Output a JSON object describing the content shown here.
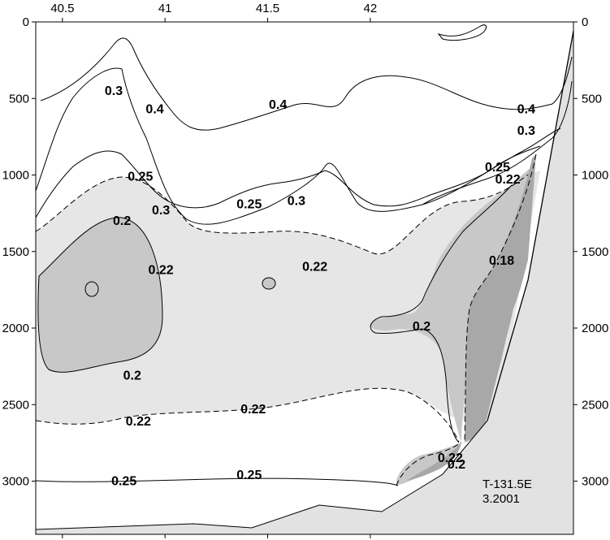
{
  "chart_data": {
    "type": "contour",
    "title": "",
    "x_axis": {
      "range": [
        40.37,
        42.99
      ],
      "ticks": [
        40.5,
        41,
        41.5,
        42
      ],
      "tick_labels": [
        "40.5",
        "41",
        "41.5",
        "42"
      ],
      "position": "top"
    },
    "y_axis": {
      "range": [
        0,
        3300
      ],
      "inverted": true,
      "ticks": [
        0,
        500,
        1000,
        1500,
        2000,
        2500,
        3000
      ],
      "tick_labels": [
        "0",
        "500",
        "1000",
        "1500",
        "2000",
        "2500",
        "3000"
      ],
      "position": "left and right"
    },
    "contour_levels": [
      "0.18",
      "0.2",
      "0.22",
      "0.25",
      "0.3",
      "0.4"
    ],
    "contour_labels": [
      {
        "text": "0.3",
        "x": 40.75,
        "y": 450
      },
      {
        "text": "0.4",
        "x": 40.95,
        "y": 570
      },
      {
        "text": "0.4",
        "x": 41.55,
        "y": 540
      },
      {
        "text": "0.4",
        "x": 42.76,
        "y": 570
      },
      {
        "text": "0.3",
        "x": 42.76,
        "y": 710
      },
      {
        "text": "0.25",
        "x": 42.62,
        "y": 950
      },
      {
        "text": "0.22",
        "x": 42.67,
        "y": 1030
      },
      {
        "text": "0.25",
        "x": 40.88,
        "y": 1010
      },
      {
        "text": "0.25",
        "x": 41.41,
        "y": 1190
      },
      {
        "text": "0.3",
        "x": 41.64,
        "y": 1170
      },
      {
        "text": "0.3",
        "x": 40.98,
        "y": 1230
      },
      {
        "text": "0.2",
        "x": 40.79,
        "y": 1300
      },
      {
        "text": "0.22",
        "x": 40.98,
        "y": 1620
      },
      {
        "text": "0.22",
        "x": 41.73,
        "y": 1600
      },
      {
        "text": "0.18",
        "x": 42.64,
        "y": 1560
      },
      {
        "text": "0.2",
        "x": 42.25,
        "y": 1990
      },
      {
        "text": "0.2",
        "x": 40.84,
        "y": 2310
      },
      {
        "text": "0.22",
        "x": 40.87,
        "y": 2610
      },
      {
        "text": "0.22",
        "x": 41.43,
        "y": 2530
      },
      {
        "text": "0.25",
        "x": 40.8,
        "y": 3000
      },
      {
        "text": "0.25",
        "x": 41.41,
        "y": 2960
      },
      {
        "text": "0.22",
        "x": 42.39,
        "y": 2850
      },
      {
        "text": "0.2",
        "x": 42.42,
        "y": 2890
      }
    ],
    "annotation": {
      "line1": "T-131.5E",
      "line2": "3.2001"
    },
    "shading": {
      "light": "#e6e6e6",
      "medium": "#c8c8c8",
      "dark": "#a8a8a8",
      "bottom": "#e2e2e2"
    }
  }
}
